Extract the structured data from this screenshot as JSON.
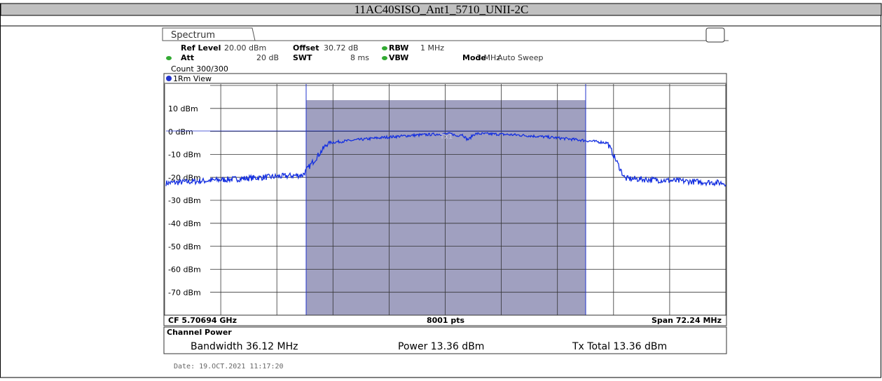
{
  "header": {
    "title": "11AC40SISO_Ant1_5710_UNII-2C"
  },
  "instrument": {
    "tab": "Spectrum",
    "settings": [
      {
        "label": "Ref Level",
        "value": "20.00 dBm"
      },
      {
        "label": "Offset",
        "value": "30.72 dB"
      },
      {
        "label": "RBW",
        "value": "1 MHz"
      },
      {
        "label": "Att",
        "value": "20 dB"
      },
      {
        "label": "SWT",
        "value": "8 ms"
      },
      {
        "label": "VBW",
        "value": "3 MHz"
      },
      {
        "label": "Mode",
        "value": "Auto Sweep"
      }
    ],
    "count": "Count 300/300",
    "view": "1Rm View",
    "y_labels": [
      "10 dBm",
      "0 dBm",
      "-10 dBm",
      "-20 dBm",
      "-30 dBm",
      "-40 dBm",
      "-50 dBm",
      "-60 dBm",
      "-70 dBm"
    ],
    "marker": "Tx1",
    "footer": {
      "cf": "CF 5.70694 GHz",
      "pts": "8001 pts",
      "span": "Span 72.24 MHz"
    },
    "channel_power": {
      "title": "Channel Power",
      "bandwidth": "Bandwidth 36.12 MHz",
      "power": "Power 13.36 dBm",
      "tx_total": "Tx Total 13.36 dBm"
    }
  },
  "date": "Date: 19.OCT.2021  11:17:20"
}
